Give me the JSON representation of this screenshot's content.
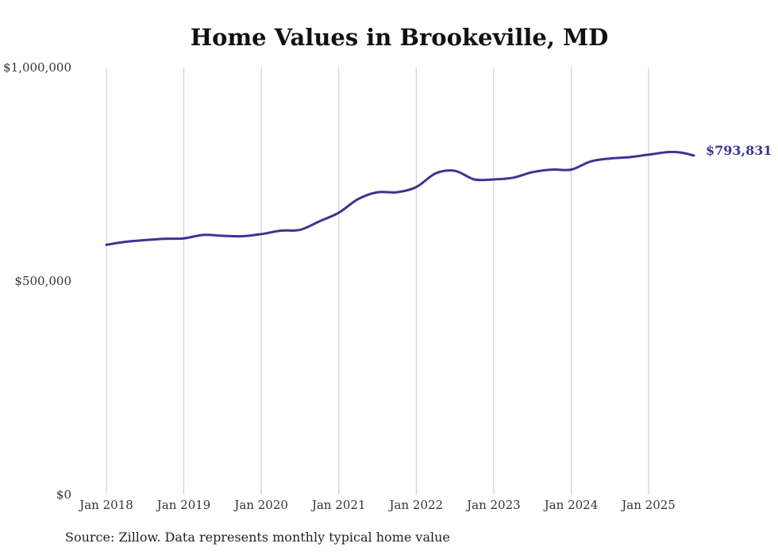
{
  "chart_data": {
    "type": "line",
    "title": "Home Values in Brookeville, MD",
    "source": "Source: Zillow. Data represents monthly typical home value",
    "y_ticks": [
      {
        "value": 0,
        "label": "$0"
      },
      {
        "value": 500000,
        "label": "$500,000"
      },
      {
        "value": 1000000,
        "label": "$1,000,000"
      }
    ],
    "x_ticks": [
      {
        "value": "2018-01",
        "label": "Jan 2018"
      },
      {
        "value": "2019-01",
        "label": "Jan 2019"
      },
      {
        "value": "2020-01",
        "label": "Jan 2020"
      },
      {
        "value": "2021-01",
        "label": "Jan 2021"
      },
      {
        "value": "2022-01",
        "label": "Jan 2022"
      },
      {
        "value": "2023-01",
        "label": "Jan 2023"
      },
      {
        "value": "2024-01",
        "label": "Jan 2024"
      },
      {
        "value": "2025-01",
        "label": "Jan 2025"
      }
    ],
    "ylim": [
      0,
      1000000
    ],
    "xlim": [
      "2018-01",
      "2025-08"
    ],
    "grid": "vertical",
    "line_color": "#3b3591",
    "end_label": "$793,831",
    "series": [
      {
        "x": [
          "2018-01",
          "2018-04",
          "2018-07",
          "2018-10",
          "2019-01",
          "2019-04",
          "2019-07",
          "2019-10",
          "2020-01",
          "2020-04",
          "2020-07",
          "2020-10",
          "2021-01",
          "2021-04",
          "2021-07",
          "2021-10",
          "2022-01",
          "2022-04",
          "2022-07",
          "2022-10",
          "2023-01",
          "2023-04",
          "2023-07",
          "2023-10",
          "2024-01",
          "2024-04",
          "2024-07",
          "2024-10",
          "2025-01",
          "2025-04",
          "2025-06",
          "2025-08"
        ],
        "y": [
          585000,
          592000,
          596000,
          599000,
          600000,
          608000,
          606000,
          605000,
          610000,
          618000,
          620000,
          640000,
          660000,
          692000,
          708000,
          708000,
          720000,
          752000,
          758000,
          738000,
          738000,
          742000,
          755000,
          761000,
          761000,
          780000,
          787000,
          790000,
          796000,
          802000,
          801000,
          793831
        ]
      }
    ]
  }
}
